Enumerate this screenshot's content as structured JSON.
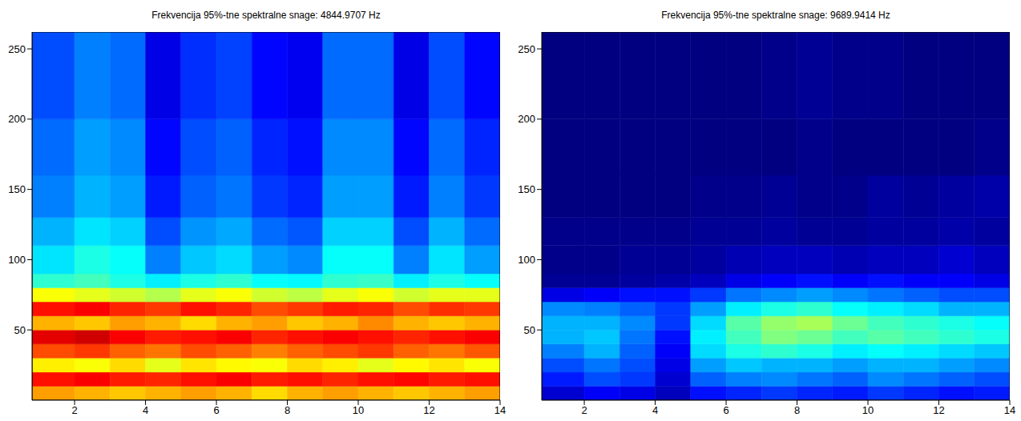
{
  "chart_data": [
    {
      "type": "heatmap",
      "title": "Frekvencija 95%-tne spektralne snage: 4844.9707 Hz",
      "xlim": [
        0.8,
        14
      ],
      "xticks": [
        2,
        4,
        6,
        8,
        10,
        12,
        14
      ],
      "ylim": [
        0,
        262
      ],
      "yticks": [
        50,
        100,
        150,
        200,
        250
      ],
      "zlim": [
        0,
        1
      ],
      "x_edges": [
        0.8,
        2,
        3,
        4,
        5,
        6,
        7,
        8,
        9,
        10,
        11,
        12,
        13,
        14
      ],
      "y_edges": [
        0,
        10,
        20,
        30,
        40,
        50,
        60,
        70,
        80,
        90,
        110,
        130,
        160,
        200,
        262
      ],
      "cells": [
        [
          0.72,
          0.7,
          0.68,
          0.7,
          0.72,
          0.7,
          0.66,
          0.7,
          0.72,
          0.7,
          0.68,
          0.7,
          0.72
        ],
        [
          0.86,
          0.88,
          0.85,
          0.84,
          0.86,
          0.88,
          0.85,
          0.86,
          0.84,
          0.86,
          0.87,
          0.85,
          0.86
        ],
        [
          0.64,
          0.62,
          0.66,
          0.6,
          0.65,
          0.63,
          0.62,
          0.66,
          0.64,
          0.6,
          0.63,
          0.65,
          0.62
        ],
        [
          0.8,
          0.82,
          0.78,
          0.76,
          0.8,
          0.78,
          0.75,
          0.78,
          0.8,
          0.82,
          0.78,
          0.76,
          0.79
        ],
        [
          0.9,
          0.92,
          0.88,
          0.85,
          0.86,
          0.88,
          0.84,
          0.86,
          0.88,
          0.86,
          0.84,
          0.86,
          0.88
        ],
        [
          0.7,
          0.68,
          0.72,
          0.7,
          0.66,
          0.7,
          0.72,
          0.68,
          0.7,
          0.74,
          0.7,
          0.68,
          0.7
        ],
        [
          0.86,
          0.88,
          0.84,
          0.82,
          0.86,
          0.84,
          0.8,
          0.82,
          0.85,
          0.84,
          0.8,
          0.83,
          0.82
        ],
        [
          0.62,
          0.6,
          0.58,
          0.55,
          0.6,
          0.62,
          0.58,
          0.56,
          0.6,
          0.62,
          0.58,
          0.6,
          0.6
        ],
        [
          0.42,
          0.44,
          0.4,
          0.36,
          0.4,
          0.42,
          0.38,
          0.37,
          0.42,
          0.43,
          0.36,
          0.4,
          0.38
        ],
        [
          0.35,
          0.4,
          0.38,
          0.25,
          0.32,
          0.34,
          0.28,
          0.26,
          0.38,
          0.38,
          0.25,
          0.35,
          0.28
        ],
        [
          0.3,
          0.35,
          0.33,
          0.2,
          0.27,
          0.29,
          0.23,
          0.21,
          0.33,
          0.33,
          0.2,
          0.3,
          0.23
        ],
        [
          0.25,
          0.3,
          0.28,
          0.15,
          0.22,
          0.24,
          0.18,
          0.16,
          0.28,
          0.28,
          0.15,
          0.25,
          0.18
        ],
        [
          0.23,
          0.28,
          0.26,
          0.13,
          0.2,
          0.22,
          0.16,
          0.14,
          0.26,
          0.26,
          0.13,
          0.23,
          0.16
        ],
        [
          0.2,
          0.25,
          0.23,
          0.1,
          0.17,
          0.19,
          0.13,
          0.11,
          0.23,
          0.23,
          0.1,
          0.2,
          0.13
        ]
      ]
    },
    {
      "type": "heatmap",
      "title": "Frekvencija 95%-tne spektralne snage: 9689.9414 Hz",
      "xlim": [
        0.8,
        14
      ],
      "xticks": [
        2,
        4,
        6,
        8,
        10,
        12,
        14
      ],
      "ylim": [
        0,
        262
      ],
      "yticks": [
        50,
        100,
        150,
        200,
        250
      ],
      "zlim": [
        0,
        1
      ],
      "x_edges": [
        0.8,
        2,
        3,
        4,
        5,
        6,
        7,
        8,
        9,
        10,
        11,
        12,
        13,
        14
      ],
      "y_edges": [
        0,
        10,
        20,
        30,
        40,
        50,
        60,
        70,
        80,
        90,
        110,
        130,
        160,
        200,
        262
      ],
      "cells": [
        [
          0.08,
          0.12,
          0.1,
          0.06,
          0.14,
          0.16,
          0.18,
          0.16,
          0.15,
          0.18,
          0.16,
          0.14,
          0.15
        ],
        [
          0.15,
          0.2,
          0.18,
          0.08,
          0.22,
          0.25,
          0.26,
          0.24,
          0.22,
          0.26,
          0.24,
          0.22,
          0.2
        ],
        [
          0.2,
          0.24,
          0.2,
          0.1,
          0.28,
          0.32,
          0.3,
          0.3,
          0.28,
          0.3,
          0.3,
          0.28,
          0.26
        ],
        [
          0.25,
          0.3,
          0.22,
          0.12,
          0.34,
          0.4,
          0.42,
          0.4,
          0.36,
          0.38,
          0.36,
          0.34,
          0.32
        ],
        [
          0.3,
          0.32,
          0.24,
          0.14,
          0.36,
          0.44,
          0.5,
          0.48,
          0.44,
          0.46,
          0.44,
          0.42,
          0.4
        ],
        [
          0.3,
          0.3,
          0.26,
          0.18,
          0.34,
          0.46,
          0.52,
          0.54,
          0.48,
          0.44,
          0.42,
          0.4,
          0.38
        ],
        [
          0.26,
          0.25,
          0.22,
          0.18,
          0.28,
          0.36,
          0.4,
          0.42,
          0.38,
          0.36,
          0.34,
          0.3,
          0.3
        ],
        [
          0.1,
          0.12,
          0.14,
          0.14,
          0.18,
          0.24,
          0.26,
          0.28,
          0.26,
          0.24,
          0.22,
          0.2,
          0.2
        ],
        [
          0.02,
          0.02,
          0.03,
          0.04,
          0.06,
          0.1,
          0.12,
          0.14,
          0.12,
          0.14,
          0.12,
          0.12,
          0.1
        ],
        [
          0.01,
          0.01,
          0.02,
          0.02,
          0.03,
          0.05,
          0.06,
          0.06,
          0.05,
          0.06,
          0.06,
          0.08,
          0.06
        ],
        [
          0.01,
          0.01,
          0.01,
          0.01,
          0.02,
          0.02,
          0.03,
          0.02,
          0.02,
          0.03,
          0.03,
          0.04,
          0.03
        ],
        [
          0,
          0,
          0,
          0,
          0.01,
          0.01,
          0.02,
          0.01,
          0.01,
          0.03,
          0.02,
          0.03,
          0.04
        ],
        [
          0,
          0,
          0,
          0,
          0,
          0,
          0,
          0.01,
          0,
          0,
          0,
          0,
          0.01
        ],
        [
          0,
          0,
          0,
          0,
          0,
          0,
          0.01,
          0.02,
          0.01,
          0.01,
          0,
          0,
          0
        ]
      ]
    }
  ]
}
